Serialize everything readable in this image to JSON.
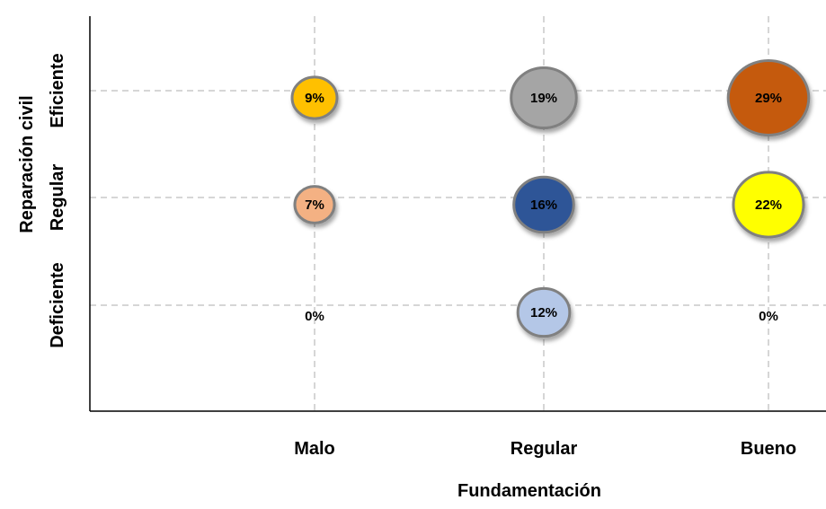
{
  "chart_data": {
    "type": "bubble",
    "xlabel": "Fundamentación",
    "ylabel": "Reparación civil",
    "x_categories": [
      "Malo",
      "Regular",
      "Bueno"
    ],
    "y_categories": [
      "Deficiente",
      "Regular",
      "Eficiente"
    ],
    "grid": true,
    "legend": "none",
    "points": [
      {
        "x": "Malo",
        "y": "Eficiente",
        "value": 9,
        "label": "9%",
        "color": "#FFC000"
      },
      {
        "x": "Regular",
        "y": "Eficiente",
        "value": 19,
        "label": "19%",
        "color": "#A5A5A5"
      },
      {
        "x": "Bueno",
        "y": "Eficiente",
        "value": 29,
        "label": "29%",
        "color": "#C55A11"
      },
      {
        "x": "Malo",
        "y": "Regular",
        "value": 7,
        "label": "7%",
        "color": "#F4B183"
      },
      {
        "x": "Regular",
        "y": "Regular",
        "value": 16,
        "label": "16%",
        "color": "#2F5597"
      },
      {
        "x": "Bueno",
        "y": "Regular",
        "value": 22,
        "label": "22%",
        "color": "#FFFF00"
      },
      {
        "x": "Malo",
        "y": "Deficiente",
        "value": 0,
        "label": "0%",
        "color": "#B4C7E7"
      },
      {
        "x": "Regular",
        "y": "Deficiente",
        "value": 12,
        "label": "12%",
        "color": "#B4C7E7"
      },
      {
        "x": "Bueno",
        "y": "Deficiente",
        "value": 0,
        "label": "0%",
        "color": "#B4C7E7"
      }
    ]
  }
}
